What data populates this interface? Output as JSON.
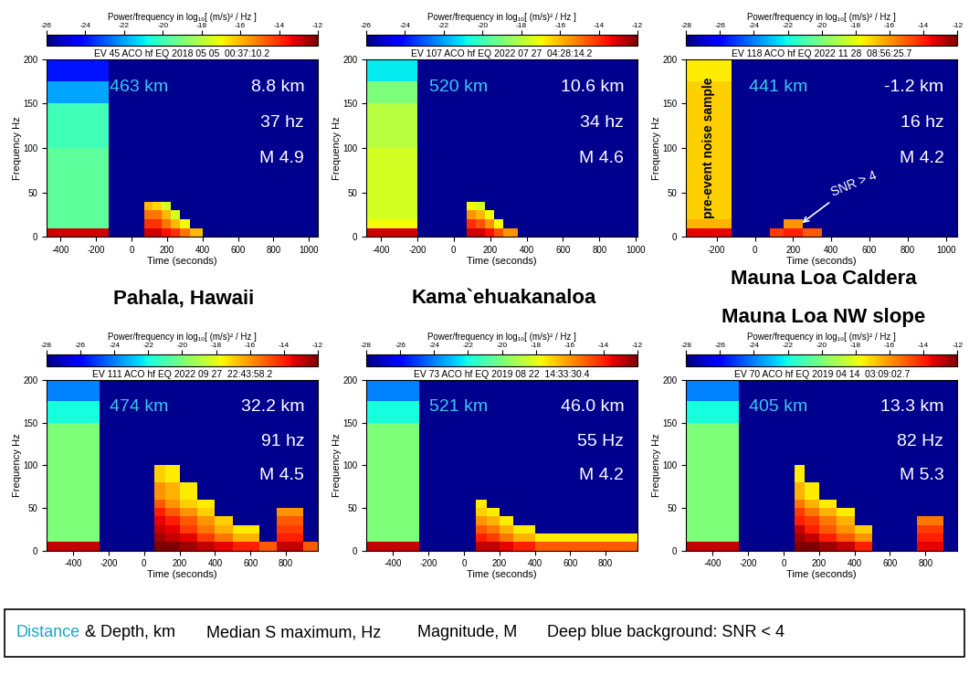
{
  "chart_data": [
    {
      "type": "heatmap",
      "title": "EV 45 ACO hf EQ 2018 05 05  00:37:10.2",
      "xlabel": "Time (seconds)",
      "ylabel": "Frequency Hz",
      "xlim": [
        -480,
        1050
      ],
      "xticks": [
        -400,
        -200,
        0,
        200,
        400,
        600,
        800,
        1000
      ],
      "ylim": [
        0,
        200
      ],
      "yticks": [
        0,
        50,
        100,
        150,
        200
      ],
      "x_edges": [
        -480,
        -130,
        70,
        120,
        170,
        220,
        270,
        330,
        400,
        1050
      ],
      "y_edges": [
        0,
        10,
        20,
        30,
        40,
        50,
        60,
        80,
        100,
        150,
        175,
        200
      ],
      "cells": [
        [
          -13,
          null,
          -13,
          -13,
          -13.5,
          -14,
          -15,
          -16,
          null
        ],
        [
          -19.5,
          null,
          -14,
          -14,
          -15,
          -16,
          -17,
          null,
          null
        ],
        [
          -19.5,
          null,
          -15,
          -15,
          -16,
          -17.5,
          null,
          null,
          null
        ],
        [
          -19.5,
          null,
          -16,
          -16.5,
          -17.5,
          null,
          null,
          null,
          null
        ],
        [
          -19.5,
          null,
          null,
          null,
          null,
          null,
          null,
          null,
          null
        ],
        [
          -19.5,
          null,
          null,
          null,
          null,
          null,
          null,
          null,
          null
        ],
        [
          -19.5,
          null,
          null,
          null,
          null,
          null,
          null,
          null,
          null
        ],
        [
          -19.5,
          null,
          null,
          null,
          null,
          null,
          null,
          null,
          null
        ],
        [
          -20,
          null,
          null,
          null,
          null,
          null,
          null,
          null,
          null
        ],
        [
          -22,
          null,
          null,
          null,
          null,
          null,
          null,
          null,
          null
        ],
        [
          -24,
          null,
          null,
          null,
          null,
          null,
          null,
          null,
          null
        ]
      ],
      "colorbar": {
        "label": "Power/frequency in log₁₀[ (m/s)² / Hz ]",
        "range": [
          -26,
          -12
        ],
        "ticks": [
          -26,
          -24,
          -22,
          -20,
          -18,
          -16,
          -14,
          -12
        ]
      },
      "annotations": {
        "distance": "463 km",
        "depth": "8.8 km",
        "frequency": "37 hz",
        "magnitude": "M 4.9"
      }
    },
    {
      "type": "heatmap",
      "title": "EV 107 ACO hf EQ 2022 07 27  04:28:14.2",
      "xlabel": "Time (seconds)",
      "ylabel": "Frequency Hz",
      "xlim": [
        -480,
        1010
      ],
      "xticks": [
        -400,
        -200,
        0,
        200,
        400,
        600,
        800,
        1000
      ],
      "ylim": [
        0,
        200
      ],
      "yticks": [
        0,
        50,
        100,
        150,
        200
      ],
      "x_edges": [
        -480,
        -200,
        70,
        120,
        170,
        220,
        270,
        350,
        1010
      ],
      "y_edges": [
        0,
        10,
        20,
        30,
        40,
        50,
        60,
        80,
        100,
        150,
        175,
        200
      ],
      "cells": [
        [
          -13,
          null,
          -13,
          -13,
          -13.5,
          -14.5,
          -15.5,
          null
        ],
        [
          -17,
          null,
          -14,
          -14.5,
          -15.5,
          -17,
          null,
          null
        ],
        [
          -17.5,
          null,
          -15.5,
          -16,
          -17,
          null,
          null,
          null
        ],
        [
          -17.5,
          null,
          -17,
          -17.5,
          null,
          null,
          null,
          null
        ],
        [
          -17.5,
          null,
          null,
          null,
          null,
          null,
          null,
          null
        ],
        [
          -17.5,
          null,
          null,
          null,
          null,
          null,
          null,
          null
        ],
        [
          -17.5,
          null,
          null,
          null,
          null,
          null,
          null,
          null
        ],
        [
          -17.5,
          null,
          null,
          null,
          null,
          null,
          null,
          null
        ],
        [
          -18,
          null,
          null,
          null,
          null,
          null,
          null,
          null
        ],
        [
          -19,
          null,
          null,
          null,
          null,
          null,
          null,
          null
        ],
        [
          -21,
          null,
          null,
          null,
          null,
          null,
          null,
          null
        ]
      ],
      "colorbar": {
        "label": "Power/frequency in log₁₀[ (m/s)² / Hz ]",
        "range": [
          -26,
          -12
        ],
        "ticks": [
          -26,
          -24,
          -22,
          -20,
          -18,
          -16,
          -14,
          -12
        ]
      },
      "annotations": {
        "distance": "520 km",
        "depth": "10.6 km",
        "frequency": "34 hz",
        "magnitude": "M 4.6"
      }
    },
    {
      "type": "heatmap",
      "title": "EV 118 ACO hf EQ 2022 11 28  08:56:25.7",
      "xlabel": "Time (seconds)",
      "ylabel": "Frequency Hz",
      "xlim": [
        -360,
        1060
      ],
      "xticks": [
        -200,
        0,
        200,
        400,
        600,
        800,
        1000
      ],
      "ylim": [
        0,
        200
      ],
      "yticks": [
        0,
        50,
        100,
        150,
        200
      ],
      "x_edges": [
        -360,
        -120,
        80,
        150,
        250,
        350,
        1060
      ],
      "y_edges": [
        0,
        10,
        20,
        30,
        40,
        50,
        60,
        80,
        100,
        150,
        175,
        200
      ],
      "cells": [
        [
          -13.5,
          null,
          -14.5,
          -14,
          -15,
          null
        ],
        [
          -16.5,
          null,
          null,
          -16,
          null,
          null
        ],
        [
          -17,
          null,
          null,
          null,
          null,
          null
        ],
        [
          -17,
          null,
          null,
          null,
          null,
          null
        ],
        [
          -17,
          null,
          null,
          null,
          null,
          null
        ],
        [
          -17,
          null,
          null,
          null,
          null,
          null
        ],
        [
          -17,
          null,
          null,
          null,
          null,
          null
        ],
        [
          -17,
          null,
          null,
          null,
          null,
          null
        ],
        [
          -17,
          null,
          null,
          null,
          null,
          null
        ],
        [
          -17,
          null,
          null,
          null,
          null,
          null
        ],
        [
          -17.5,
          null,
          null,
          null,
          null,
          null
        ]
      ],
      "colorbar": {
        "label": "Power/frequency in log₁₀[ (m/s)² / Hz ]",
        "range": [
          -28,
          -12
        ],
        "ticks": [
          -28,
          -26,
          -24,
          -22,
          -20,
          -18,
          -16,
          -14,
          -12
        ]
      },
      "annotations": {
        "distance": "441 km",
        "depth": "-1.2 km",
        "frequency": "16 hz",
        "magnitude": "M 4.2"
      },
      "notes": {
        "noise_label": "pre-event noise sample",
        "snr_label": "SNR > 4"
      }
    },
    {
      "type": "heatmap",
      "title": "EV 111 ACO hf EQ 2022 09 27  22:43:58.2",
      "xlabel": "Time (seconds)",
      "ylabel": "Frequency Hz",
      "xlim": [
        -550,
        980
      ],
      "xticks": [
        -400,
        -200,
        0,
        200,
        400,
        600,
        800
      ],
      "ylim": [
        0,
        200
      ],
      "yticks": [
        0,
        50,
        100,
        150,
        200
      ],
      "x_edges": [
        -550,
        -250,
        60,
        120,
        200,
        300,
        400,
        500,
        650,
        750,
        900,
        980
      ],
      "y_edges": [
        0,
        10,
        20,
        30,
        40,
        50,
        60,
        80,
        100,
        150,
        175,
        200
      ],
      "cells": [
        [
          -13,
          null,
          -12,
          -12,
          -12.5,
          -13,
          -13.5,
          -14,
          -15,
          -13,
          -15
        ],
        [
          -20,
          null,
          -12.5,
          -13,
          -13.5,
          -14.5,
          -15.5,
          -16.5,
          null,
          -14,
          null
        ],
        [
          -20,
          null,
          -13,
          -13.5,
          -14.5,
          -15.5,
          -16.5,
          -17.5,
          null,
          -14.5,
          null
        ],
        [
          -20,
          null,
          -13.5,
          -14,
          -15,
          -16,
          -17,
          null,
          null,
          -15,
          null
        ],
        [
          -20,
          null,
          -14,
          -15,
          -16,
          -17,
          null,
          null,
          null,
          -16,
          null
        ],
        [
          -20,
          null,
          -15,
          -16,
          -17,
          -17.5,
          null,
          null,
          null,
          null,
          null
        ],
        [
          -20,
          null,
          -16,
          -16.5,
          -17.5,
          null,
          null,
          null,
          null,
          null,
          null
        ],
        [
          -20,
          null,
          -17,
          -17.5,
          null,
          null,
          null,
          null,
          null,
          null,
          null
        ],
        [
          -20,
          null,
          null,
          null,
          null,
          null,
          null,
          null,
          null,
          null,
          null
        ],
        [
          -22,
          null,
          null,
          null,
          null,
          null,
          null,
          null,
          null,
          null,
          null
        ],
        [
          -24,
          null,
          null,
          null,
          null,
          null,
          null,
          null,
          null,
          null,
          null
        ]
      ],
      "colorbar": {
        "label": "Power/frequency in log₁₀[ (m/s)² / Hz ]",
        "range": [
          -28,
          -12
        ],
        "ticks": [
          -28,
          -26,
          -24,
          -22,
          -20,
          -18,
          -16,
          -14,
          -12
        ]
      },
      "annotations": {
        "distance": "474 km",
        "depth": "32.2 km",
        "frequency": "91 hz",
        "magnitude": "M 4.5"
      }
    },
    {
      "type": "heatmap",
      "title": "EV 73 ACO hf EQ 2019 08 22  14:33:30.4",
      "xlabel": "Time (seconds)",
      "ylabel": "Frequency Hz",
      "xlim": [
        -550,
        980
      ],
      "xticks": [
        -400,
        -200,
        0,
        200,
        400,
        600,
        800
      ],
      "ylim": [
        0,
        200
      ],
      "yticks": [
        0,
        50,
        100,
        150,
        200
      ],
      "x_edges": [
        -550,
        -250,
        70,
        130,
        200,
        280,
        400,
        980
      ],
      "y_edges": [
        0,
        10,
        20,
        30,
        40,
        50,
        60,
        80,
        100,
        150,
        175,
        200
      ],
      "cells": [
        [
          -13,
          null,
          -13,
          -13,
          -13.5,
          -14,
          -15
        ],
        [
          -20,
          null,
          -14,
          -14.5,
          -15.5,
          -16.5,
          -17.5
        ],
        [
          -20,
          null,
          -15,
          -15.5,
          -16.5,
          -17.5,
          null
        ],
        [
          -20,
          null,
          -16,
          -16.5,
          -17.5,
          null,
          null
        ],
        [
          -20,
          null,
          -17,
          -17.5,
          null,
          null,
          null
        ],
        [
          -20,
          null,
          -17.5,
          null,
          null,
          null,
          null
        ],
        [
          -20,
          null,
          null,
          null,
          null,
          null,
          null
        ],
        [
          -20,
          null,
          null,
          null,
          null,
          null,
          null
        ],
        [
          -20,
          null,
          null,
          null,
          null,
          null,
          null
        ],
        [
          -22,
          null,
          null,
          null,
          null,
          null,
          null
        ],
        [
          -24,
          null,
          null,
          null,
          null,
          null,
          null
        ]
      ],
      "colorbar": {
        "label": "Power/frequency in log₁₀[ (m/s)² / Hz ]",
        "range": [
          -28,
          -12
        ],
        "ticks": [
          -28,
          -26,
          -24,
          -22,
          -20,
          -18,
          -16,
          -14,
          -12
        ]
      },
      "annotations": {
        "distance": "521 km",
        "depth": "46.0 km",
        "frequency": "55 Hz",
        "magnitude": "M 4.2"
      }
    },
    {
      "type": "heatmap",
      "title": "EV 70 ACO hf EQ 2019 04 14  03:09:02.7",
      "xlabel": "Time (seconds)",
      "ylabel": "Frequency Hz",
      "xlim": [
        -550,
        980
      ],
      "xticks": [
        -400,
        -200,
        0,
        200,
        400,
        600,
        800
      ],
      "ylim": [
        0,
        200
      ],
      "yticks": [
        0,
        50,
        100,
        150,
        200
      ],
      "x_edges": [
        -550,
        -250,
        60,
        120,
        200,
        300,
        400,
        500,
        750,
        900,
        980
      ],
      "y_edges": [
        0,
        10,
        20,
        30,
        40,
        50,
        60,
        80,
        100,
        150,
        175,
        200
      ],
      "cells": [
        [
          -13,
          null,
          -12,
          -12,
          -12.5,
          -13,
          -14,
          null,
          -13.5,
          null
        ],
        [
          -20,
          null,
          -12.5,
          -13,
          -14,
          -15,
          -16,
          null,
          -14,
          null
        ],
        [
          -20,
          null,
          -13,
          -14,
          -15,
          -16,
          -17,
          null,
          -14.5,
          null
        ],
        [
          -20,
          null,
          -14,
          -14.5,
          -15.5,
          -16.5,
          null,
          null,
          -15.5,
          null
        ],
        [
          -20,
          null,
          -14.5,
          -15.5,
          -16.5,
          -17.5,
          null,
          null,
          null,
          null
        ],
        [
          -20,
          null,
          -15.5,
          -16.5,
          -17.5,
          null,
          null,
          null,
          null,
          null
        ],
        [
          -20,
          null,
          -16.5,
          -17.5,
          null,
          null,
          null,
          null,
          null,
          null
        ],
        [
          -20,
          null,
          -17.5,
          null,
          null,
          null,
          null,
          null,
          null,
          null
        ],
        [
          -20,
          null,
          null,
          null,
          null,
          null,
          null,
          null,
          null,
          null
        ],
        [
          -22,
          null,
          null,
          null,
          null,
          null,
          null,
          null,
          null,
          null
        ],
        [
          -24,
          null,
          null,
          null,
          null,
          null,
          null,
          null,
          null,
          null
        ]
      ],
      "colorbar": {
        "label": "Power/frequency in log₁₀[ (m/s)² / Hz ]",
        "range": [
          -28,
          -12
        ],
        "ticks": [
          -28,
          -26,
          -24,
          -22,
          -20,
          -18,
          -16,
          -14,
          -12
        ]
      },
      "annotations": {
        "distance": "405 km",
        "depth": "13.3 km",
        "frequency": "82 Hz",
        "magnitude": "M 5.3"
      }
    }
  ],
  "figure_texts": {
    "locations": [
      "Pahala, Hawaii",
      "Kama`ehuakanaloa",
      "Mauna Loa Caldera",
      "Mauna Loa NW slope"
    ],
    "legend_box": [
      "Distance",
      " & Depth, km",
      "Median S maximum, Hz",
      "Magnitude, M",
      "Deep blue background: SNR < 4"
    ]
  }
}
